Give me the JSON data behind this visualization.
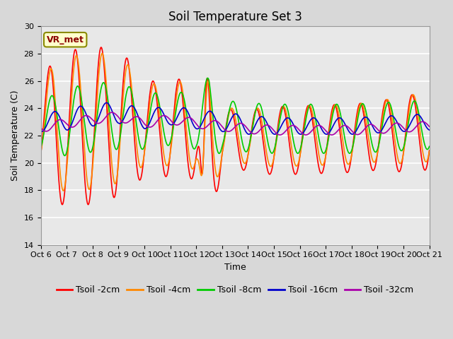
{
  "title": "Soil Temperature Set 3",
  "xlabel": "Time",
  "ylabel": "Soil Temperature (C)",
  "ylim": [
    14,
    30
  ],
  "xlim": [
    0,
    15
  ],
  "annotation": "VR_met",
  "xtick_labels": [
    "Oct 6",
    "Oct 7",
    "Oct 8",
    "Oct 9",
    "Oct 10",
    "Oct 11",
    "Oct 12",
    "Oct 13",
    "Oct 14",
    "Oct 15",
    "Oct 16",
    "Oct 17",
    "Oct 18",
    "Oct 19",
    "Oct 20",
    "Oct 21"
  ],
  "ytick_vals": [
    14,
    16,
    18,
    20,
    22,
    24,
    26,
    28,
    30
  ],
  "series_colors": [
    "#ff0000",
    "#ff8800",
    "#00cc00",
    "#0000cc",
    "#aa00aa"
  ],
  "series_labels": [
    "Tsoil -2cm",
    "Tsoil -4cm",
    "Tsoil -8cm",
    "Tsoil -16cm",
    "Tsoil -32cm"
  ],
  "bg_color": "#e8e8e8",
  "fig_bg_color": "#d8d8d8",
  "title_fontsize": 12,
  "axis_fontsize": 9,
  "tick_fontsize": 8,
  "legend_fontsize": 9,
  "linewidth": 1.2
}
